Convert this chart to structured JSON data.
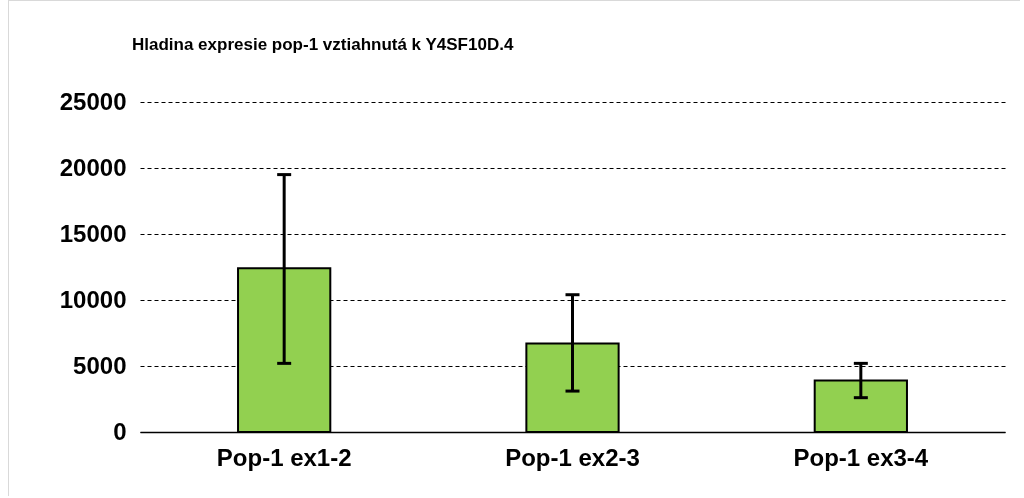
{
  "chart_data": {
    "type": "bar",
    "title": "Hladina expresie pop-1 vztiahnutá k Y4SF10D.4",
    "categories": [
      "Pop-1 ex1-2",
      "Pop-1 ex2-3",
      "Pop-1 ex3-4"
    ],
    "values": [
      12400,
      6700,
      3900
    ],
    "errors": [
      [
        5200,
        19500
      ],
      [
        3100,
        10400
      ],
      [
        2600,
        5200
      ]
    ],
    "color": "#92d050",
    "ylim": [
      0,
      25000
    ],
    "yticks": [
      0,
      5000,
      10000,
      15000,
      20000,
      25000
    ],
    "grid": "y"
  }
}
